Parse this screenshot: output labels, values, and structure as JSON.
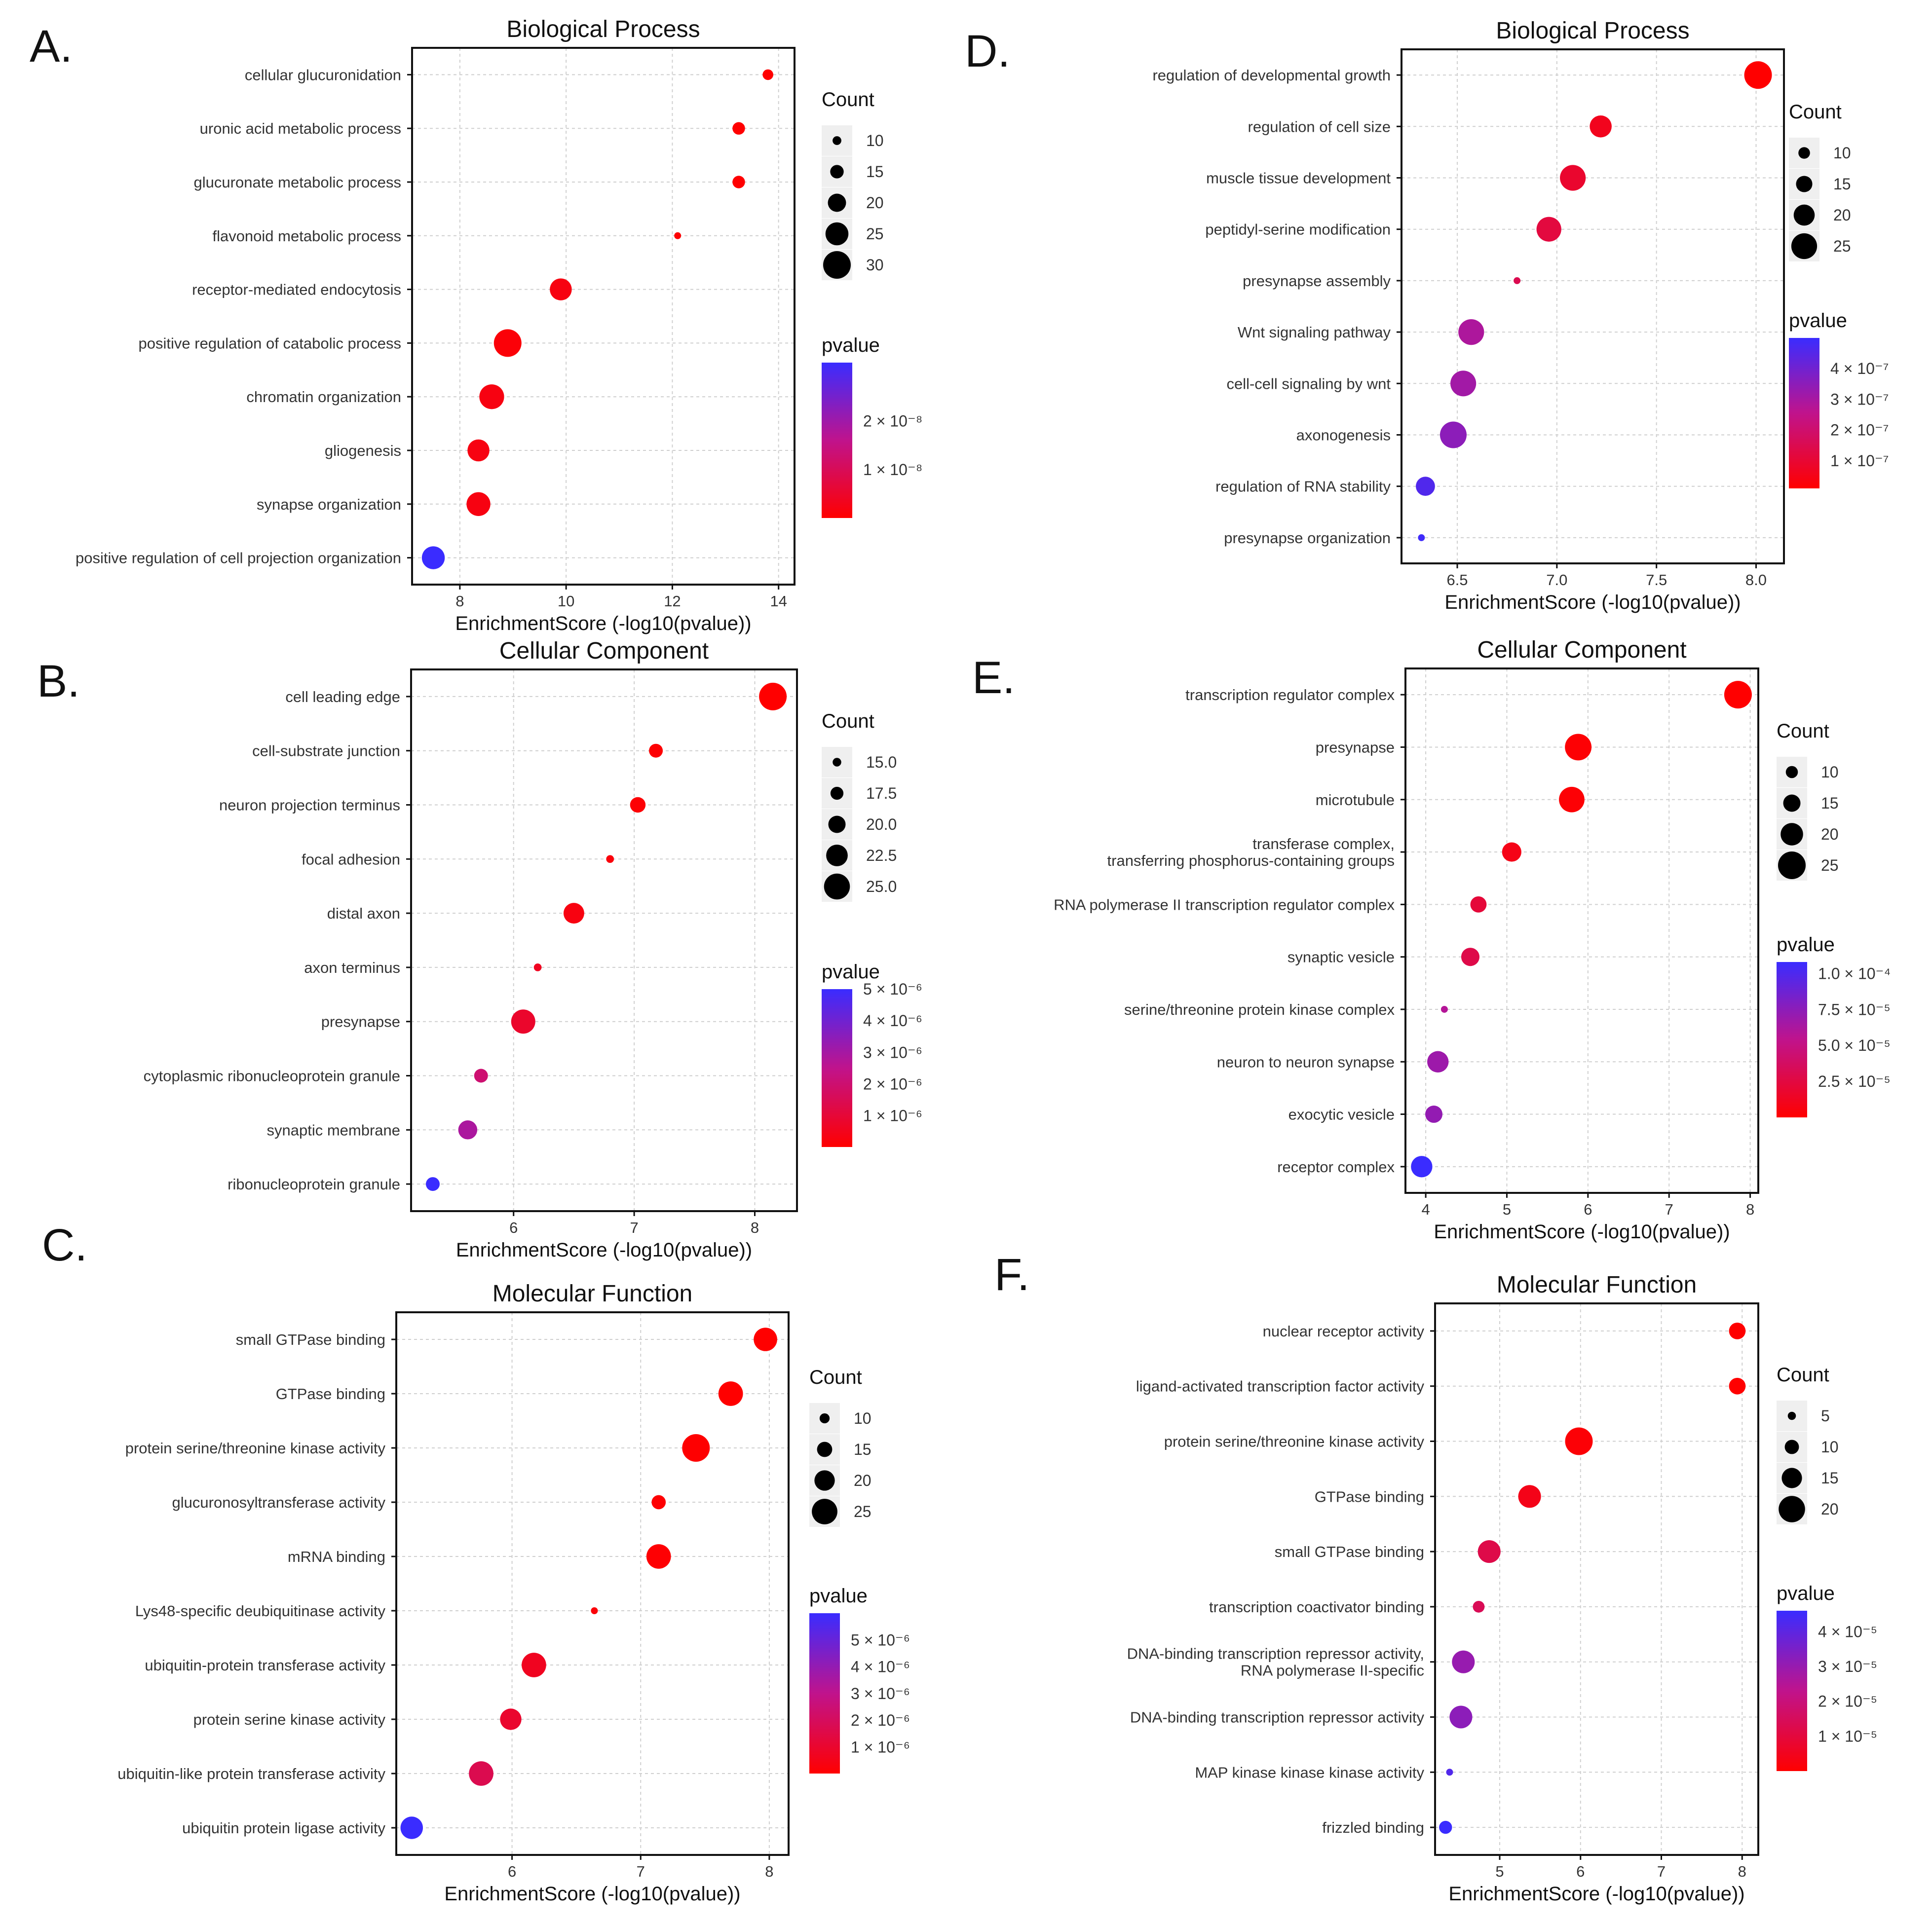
{
  "chart_data": [
    {
      "type": "scatter",
      "panel_label": "A.",
      "title": "Biological Process",
      "xlabel": "EnrichmentScore (-log10(pvalue))",
      "ylabel": "",
      "xlim": [
        7.1,
        14.3
      ],
      "xticks": [
        "8",
        "10",
        "12",
        "14"
      ],
      "grid": true,
      "categories": [
        "cellular glucuronidation",
        "uronic acid metabolic process",
        "glucuronate metabolic process",
        "flavonoid metabolic process",
        "receptor-mediated endocytosis",
        "positive regulation of catabolic process",
        "chromatin organization",
        "gliogenesis",
        "synapse organization",
        "positive regulation of cell projection organization"
      ],
      "x": [
        13.8,
        13.25,
        13.25,
        12.1,
        9.9,
        8.9,
        8.6,
        8.35,
        8.35,
        7.5
      ],
      "count": [
        12,
        14,
        14,
        8,
        24,
        30,
        27,
        24,
        26,
        25
      ],
      "pvalue": [
        1e-10,
        2e-10,
        2e-10,
        6e-10,
        2e-09,
        1e-09,
        2e-09,
        2e-09,
        2e-09,
        3.2e-08
      ],
      "count_legend": {
        "title": "Count",
        "values": [
          10,
          15,
          20,
          25,
          30
        ],
        "labels": [
          "10",
          "15",
          "20",
          "25",
          "30"
        ],
        "range": [
          8,
          30
        ]
      },
      "pvalue_legend": {
        "title": "pvalue",
        "min": 1e-10,
        "max": 3.2e-08,
        "ticks": [
          2e-08,
          1e-08
        ],
        "tick_labels": [
          "2 × 10⁻⁸",
          "1 × 10⁻⁸"
        ]
      }
    },
    {
      "type": "scatter",
      "panel_label": "B.",
      "title": "Cellular Component",
      "xlabel": "EnrichmentScore (-log10(pvalue))",
      "ylabel": "",
      "xlim": [
        5.15,
        8.35
      ],
      "xticks": [
        "6",
        "7",
        "8"
      ],
      "grid": true,
      "categories": [
        "cell leading edge",
        "cell-substrate junction",
        "neuron projection terminus",
        "focal adhesion",
        "distal axon",
        "axon terminus",
        "presynapse",
        "cytoplasmic ribonucleoprotein granule",
        "synaptic membrane",
        "ribonucleoprotein granule"
      ],
      "x": [
        8.15,
        7.18,
        7.03,
        6.8,
        6.5,
        6.2,
        6.08,
        5.73,
        5.62,
        5.33
      ],
      "count": [
        26,
        18,
        19,
        14.5,
        22,
        14.5,
        24,
        18,
        21,
        18
      ],
      "pvalue": [
        1e-08,
        7e-08,
        1e-07,
        2e-07,
        3e-07,
        6e-07,
        8e-07,
        2e-06,
        2.9e-06,
        5e-06
      ],
      "count_legend": {
        "title": "Count",
        "values": [
          15.0,
          17.5,
          20.0,
          22.5,
          25.0
        ],
        "labels": [
          "15.0",
          "17.5",
          "20.0",
          "22.5",
          "25.0"
        ],
        "range": [
          14,
          26
        ]
      },
      "pvalue_legend": {
        "title": "pvalue",
        "min": 1e-08,
        "max": 5e-06,
        "ticks": [
          5e-06,
          4e-06,
          3e-06,
          2e-06,
          1e-06
        ],
        "tick_labels": [
          "5 × 10⁻⁶",
          "4 × 10⁻⁶",
          "3 × 10⁻⁶",
          "2 × 10⁻⁶",
          "1 × 10⁻⁶"
        ]
      }
    },
    {
      "type": "scatter",
      "panel_label": "C.",
      "title": "Molecular Function",
      "xlabel": "EnrichmentScore (-log10(pvalue))",
      "ylabel": "",
      "xlim": [
        5.1,
        8.15
      ],
      "xticks": [
        "6",
        "7",
        "8"
      ],
      "grid": true,
      "categories": [
        "small GTPase binding",
        "GTPase binding",
        "protein serine/threonine kinase activity",
        "glucuronosyltransferase activity",
        "mRNA binding",
        "Lys48-specific deubiquitinase activity",
        "ubiquitin-protein transferase activity",
        "protein serine kinase activity",
        "ubiquitin-like protein transferase activity",
        "ubiquitin protein ligase activity"
      ],
      "x": [
        7.97,
        7.7,
        7.43,
        7.14,
        7.14,
        6.64,
        6.17,
        5.99,
        5.76,
        5.22
      ],
      "count": [
        23,
        24,
        27,
        14,
        24,
        7,
        24,
        21,
        24,
        22
      ],
      "pvalue": [
        1e-08,
        2e-08,
        4e-08,
        7e-08,
        7e-08,
        2e-07,
        7e-07,
        1e-06,
        1.7e-06,
        6e-06
      ],
      "count_legend": {
        "title": "Count",
        "values": [
          10,
          15,
          20,
          25
        ],
        "labels": [
          "10",
          "15",
          "20",
          "25"
        ],
        "range": [
          7,
          27
        ]
      },
      "pvalue_legend": {
        "title": "pvalue",
        "min": 1e-08,
        "max": 6e-06,
        "ticks": [
          5e-06,
          4e-06,
          3e-06,
          2e-06,
          1e-06
        ],
        "tick_labels": [
          "5 × 10⁻⁶",
          "4 × 10⁻⁶",
          "3 × 10⁻⁶",
          "2 × 10⁻⁶",
          "1 × 10⁻⁶"
        ]
      }
    },
    {
      "type": "scatter",
      "panel_label": "D.",
      "title": "Biological Process",
      "xlabel": "EnrichmentScore (-log10(pvalue))",
      "ylabel": "",
      "xlim": [
        6.22,
        8.14
      ],
      "xticks": [
        "6.5",
        "7.0",
        "7.5",
        "8.0"
      ],
      "grid": true,
      "categories": [
        "regulation of developmental growth",
        "regulation of cell size",
        "muscle tissue development",
        "peptidyl-serine modification",
        "presynapse assembly",
        "Wnt signaling pathway",
        "cell-cell signaling by wnt",
        "axonogenesis",
        "regulation of RNA stability",
        "presynapse organization"
      ],
      "x": [
        8.01,
        7.22,
        7.08,
        6.96,
        6.8,
        6.57,
        6.53,
        6.48,
        6.34,
        6.32
      ],
      "count": [
        27,
        21,
        25,
        24,
        5,
        25,
        25,
        26,
        18,
        5
      ],
      "pvalue": [
        1e-08,
        6e-08,
        9e-08,
        1.2e-07,
        1.5e-07,
        2.9e-07,
        3.1e-07,
        3.5e-07,
        4.6e-07,
        4.9e-07
      ],
      "count_legend": {
        "title": "Count",
        "values": [
          10,
          15,
          20,
          25
        ],
        "labels": [
          "10",
          "15",
          "20",
          "25"
        ],
        "range": [
          5,
          27
        ]
      },
      "pvalue_legend": {
        "title": "pvalue",
        "min": 1e-08,
        "max": 5e-07,
        "ticks": [
          4e-07,
          3e-07,
          2e-07,
          1e-07
        ],
        "tick_labels": [
          "4 × 10⁻⁷",
          "3 × 10⁻⁷",
          "2 × 10⁻⁷",
          "1 × 10⁻⁷"
        ]
      }
    },
    {
      "type": "scatter",
      "panel_label": "E.",
      "title": "Cellular Component",
      "xlabel": "EnrichmentScore (-log10(pvalue))",
      "ylabel": "",
      "xlim": [
        3.75,
        8.1
      ],
      "xticks": [
        "4",
        "5",
        "6",
        "7",
        "8"
      ],
      "grid": true,
      "categories": [
        "transcription regulator complex",
        "presynapse",
        "microtubule",
        "transferase complex, transferring phosphorus-containing groups",
        "RNA polymerase II transcription regulator complex",
        "synaptic vesicle",
        "serine/threonine protein kinase complex",
        "neuron to neuron synapse",
        "exocytic vesicle",
        "receptor complex"
      ],
      "x": [
        7.85,
        5.88,
        5.8,
        5.06,
        4.65,
        4.55,
        4.23,
        4.15,
        4.1,
        3.95
      ],
      "count": [
        25,
        24,
        23,
        17,
        14,
        16,
        5,
        19,
        15,
        19
      ],
      "pvalue": [
        1e-08,
        1.5e-06,
        1.8e-06,
        9e-06,
        2.2e-05,
        2.8e-05,
        5.9e-05,
        6.8e-05,
        7.2e-05,
        0.000108
      ],
      "count_legend": {
        "title": "Count",
        "values": [
          10,
          15,
          20,
          25
        ],
        "labels": [
          "10",
          "15",
          "20",
          "25"
        ],
        "range": [
          5,
          25
        ]
      },
      "pvalue_legend": {
        "title": "pvalue",
        "min": 1e-08,
        "max": 0.000108,
        "ticks": [
          0.0001,
          7.5e-05,
          5e-05,
          2.5e-05
        ],
        "tick_labels": [
          "1.0 × 10⁻⁴",
          "7.5 × 10⁻⁵",
          "5.0 × 10⁻⁵",
          "2.5 × 10⁻⁵"
        ]
      }
    },
    {
      "type": "scatter",
      "panel_label": "F.",
      "title": "Molecular Function",
      "xlabel": "EnrichmentScore (-log10(pvalue))",
      "ylabel": "",
      "xlim": [
        4.2,
        8.2
      ],
      "xticks": [
        "5",
        "6",
        "7",
        "8"
      ],
      "grid": true,
      "categories": [
        "nuclear receptor activity",
        "ligand-activated transcription factor activity",
        "protein serine/threonine kinase activity",
        "GTPase binding",
        "small GTPase binding",
        "transcription coactivator binding",
        "DNA-binding transcription repressor activity, RNA polymerase II-specific",
        "DNA-binding transcription repressor activity",
        "MAP kinase kinase kinase activity",
        "frizzled binding"
      ],
      "x": [
        7.94,
        7.94,
        5.98,
        5.37,
        4.87,
        4.74,
        4.55,
        4.52,
        4.38,
        4.33
      ],
      "count": [
        12,
        12,
        21,
        17,
        17,
        8,
        17,
        17,
        4,
        9
      ],
      "pvalue": [
        1e-08,
        1e-08,
        1e-06,
        4e-06,
        1.2e-05,
        1.4e-05,
        3e-05,
        3.2e-05,
        4.2e-05,
        4.6e-05
      ],
      "count_legend": {
        "title": "Count",
        "values": [
          5,
          10,
          15,
          20
        ],
        "labels": [
          "5",
          "10",
          "15",
          "20"
        ],
        "range": [
          4,
          21
        ]
      },
      "pvalue_legend": {
        "title": "pvalue",
        "min": 1e-08,
        "max": 4.6e-05,
        "ticks": [
          4e-05,
          3e-05,
          2e-05,
          1e-05
        ],
        "tick_labels": [
          "4 × 10⁻⁵",
          "3 × 10⁻⁵",
          "2 × 10⁻⁵",
          "1 × 10⁻⁵"
        ]
      }
    }
  ]
}
